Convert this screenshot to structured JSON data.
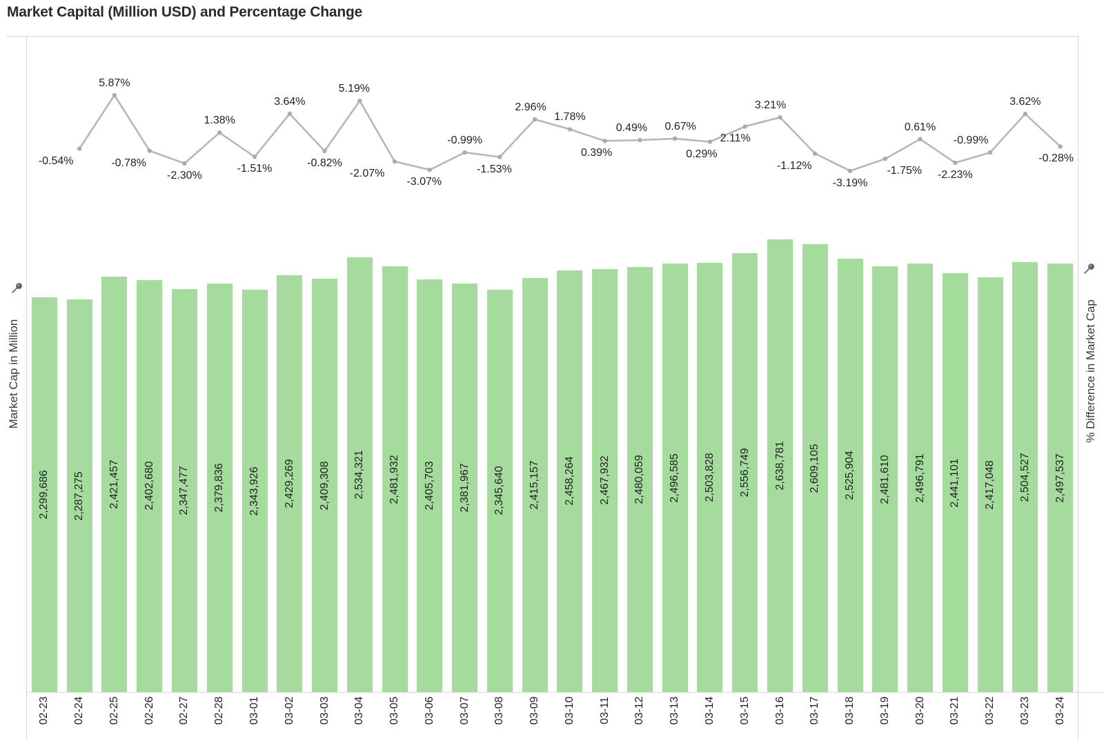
{
  "title": "Market Capital (Million USD) and Percentage Change",
  "left_axis": {
    "label": "Market Cap in Million",
    "icon": "pushpin-icon"
  },
  "right_axis": {
    "label": "% Difference in Market Cap",
    "icon": "pushpin-icon"
  },
  "colors": {
    "bar_fill": "#a5dc9e",
    "line_stroke": "#b7b7b7",
    "marker_fill": "#ababab",
    "label_text": "#1f1f1f",
    "title_text": "#2b2b2b",
    "axis_text": "#3a3a3a",
    "divider": "#d4d4d4",
    "pin": "#5a6570"
  },
  "chart_data": {
    "type": "bar",
    "title": "Market Capital (Million USD) and Percentage Change",
    "categories": [
      "02-23",
      "02-24",
      "02-25",
      "02-26",
      "02-27",
      "02-28",
      "03-01",
      "03-02",
      "03-03",
      "03-04",
      "03-05",
      "03-06",
      "03-07",
      "03-08",
      "03-09",
      "03-10",
      "03-11",
      "03-12",
      "03-13",
      "03-14",
      "03-15",
      "03-16",
      "03-17",
      "03-18",
      "03-19",
      "03-20",
      "03-21",
      "03-22",
      "03-23",
      "03-24"
    ],
    "xlabel": "",
    "ylabel": "Market Cap in Million",
    "y2label": "% Difference in Market Cap",
    "ylim": [
      0,
      2700000
    ],
    "y2lim": [
      -4,
      7
    ],
    "grid": false,
    "legend": "none",
    "series": [
      {
        "name": "Market Cap in Million",
        "type": "bar",
        "values": [
          2299686,
          2287275,
          2421457,
          2402680,
          2347477,
          2379836,
          2343926,
          2429269,
          2409308,
          2534321,
          2481932,
          2405703,
          2381967,
          2345640,
          2415157,
          2458264,
          2467932,
          2480059,
          2496585,
          2503828,
          2556749,
          2638781,
          2609105,
          2525904,
          2481610,
          2496791,
          2441101,
          2417048,
          2504527,
          2497537
        ],
        "value_labels": [
          "2,299,686",
          "2,287,275",
          "2,421,457",
          "2,402,680",
          "2,347,477",
          "2,379,836",
          "2,343,926",
          "2,429,269",
          "2,409,308",
          "2,534,321",
          "2,481,932",
          "2,405,703",
          "2,381,967",
          "2,345,640",
          "2,415,157",
          "2,458,264",
          "2,467,932",
          "2,480,059",
          "2,496,585",
          "2,503,828",
          "2,556,749",
          "2,638,781",
          "2,609,105",
          "2,525,904",
          "2,481,610",
          "2,496,791",
          "2,441,101",
          "2,417,048",
          "2,504,527",
          "2,497,537"
        ]
      },
      {
        "name": "% Difference in Market Cap",
        "type": "line",
        "categories": [
          "02-24",
          "02-25",
          "02-26",
          "02-27",
          "02-28",
          "03-01",
          "03-02",
          "03-03",
          "03-04",
          "03-05",
          "03-06",
          "03-07",
          "03-08",
          "03-09",
          "03-10",
          "03-11",
          "03-12",
          "03-13",
          "03-14",
          "03-15",
          "03-16",
          "03-17",
          "03-18",
          "03-19",
          "03-20",
          "03-21",
          "03-22",
          "03-23",
          "03-24"
        ],
        "values": [
          -0.54,
          5.87,
          -0.78,
          -2.3,
          1.38,
          -1.51,
          3.64,
          -0.82,
          5.19,
          -2.07,
          -3.07,
          -0.99,
          -1.53,
          2.96,
          1.78,
          0.39,
          0.49,
          0.67,
          0.29,
          2.11,
          3.21,
          -1.12,
          -3.19,
          -1.75,
          0.61,
          -2.23,
          -0.99,
          3.62,
          -0.28
        ],
        "value_labels": [
          "-0.54%",
          "5.87%",
          "-0.78%",
          "-2.30%",
          "1.38%",
          "-1.51%",
          "3.64%",
          "-0.82%",
          "5.19%",
          "-2.07%",
          "-3.07%",
          "-0.99%",
          "-1.53%",
          "2.96%",
          "1.78%",
          "0.39%",
          "0.49%",
          "0.67%",
          "0.29%",
          "2.11%",
          "3.21%",
          "-1.12%",
          "-3.19%",
          "-1.75%",
          "0.61%",
          "-2.23%",
          "-0.99%",
          "3.62%",
          "-0.28%"
        ],
        "label_positions": [
          "below",
          "above",
          "below",
          "below",
          "above",
          "below",
          "above",
          "below",
          "above",
          "below",
          "below",
          "above",
          "below",
          "above",
          "above",
          "below",
          "above",
          "above",
          "below",
          "below",
          "above",
          "below",
          "below",
          "below",
          "above",
          "below",
          "above",
          "above",
          "below"
        ],
        "label_dx": [
          -34,
          0,
          -30,
          0,
          0,
          0,
          0,
          0,
          -8,
          -40,
          -8,
          0,
          -8,
          -6,
          0,
          -12,
          -12,
          8,
          -12,
          -14,
          -14,
          -30,
          0,
          28,
          0,
          0,
          -28,
          0,
          -6
        ]
      }
    ]
  }
}
